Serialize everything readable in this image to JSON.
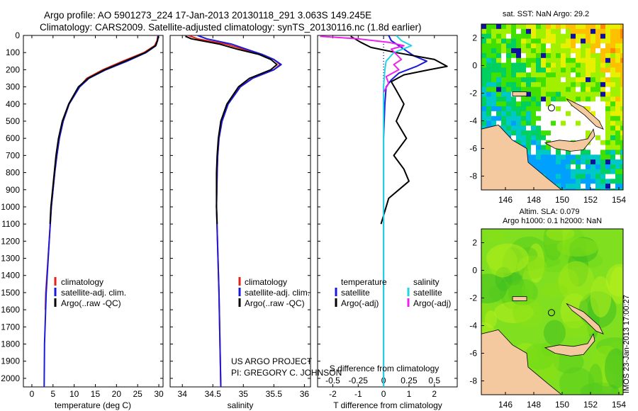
{
  "header": {
    "line1": "Argo profile: AO 5901273_224 17-Jan-2013 20130118_291 3.063S 149.245E",
    "line2": "Climatology: CARS2009. Satellite-adjusted climatology: synTS_20130116.nc (1.8d earlier)"
  },
  "footer": {
    "project": "US ARGO PROJECT",
    "pi": "PI: GREGORY C. JOHNSON",
    "watermark": "IMOS 23-Jan-2013 17:00:27"
  },
  "legend_profile": {
    "items": [
      "climatology",
      "satellite-adj. clim.",
      "Argo(..raw -QC)"
    ]
  },
  "legend_diff": {
    "col1_title": "temperature",
    "col2_title": "salinity",
    "col1_items": [
      "satellite",
      "Argo(-adj)"
    ],
    "col2_items": [
      "satellite",
      "Argo(-adj)"
    ]
  },
  "colors": {
    "climatology": "#e8201a",
    "satellite": "#1a1ad8",
    "argo": "#000000",
    "sal_satellite": "#22d4e6",
    "sal_argo": "#ee22ee",
    "land": "#f5c9a0"
  },
  "chart_data": [
    {
      "name": "temperature-profile",
      "type": "line",
      "xlabel": "temperature (deg C)",
      "ylabel": "",
      "xlim": [
        -2,
        31
      ],
      "ylim": [
        2050,
        0
      ],
      "xticks": [
        0,
        5,
        10,
        15,
        20,
        25,
        30
      ],
      "yticks": [
        0,
        100,
        200,
        300,
        400,
        500,
        600,
        700,
        800,
        900,
        1000,
        1100,
        1200,
        1300,
        1400,
        1500,
        1600,
        1700,
        1800,
        1900,
        2000
      ],
      "series": [
        {
          "name": "climatology",
          "color": "#e8201a",
          "depth": [
            0,
            30,
            60,
            100,
            150,
            200,
            250,
            300,
            400,
            500,
            600,
            700,
            800,
            900,
            1000,
            1200,
            1500,
            1600
          ],
          "values": [
            29.8,
            29.6,
            29.0,
            26.5,
            21.5,
            16.8,
            13.0,
            11.2,
            8.8,
            7.4,
            6.5,
            5.9,
            5.4,
            5.0,
            4.6,
            4.1,
            3.3,
            3.2
          ]
        },
        {
          "name": "satellite-adj. clim.",
          "color": "#1a1ad8",
          "depth": [
            0,
            30,
            60,
            100,
            150,
            200,
            250,
            300,
            400,
            500,
            600,
            700,
            800,
            900,
            1000,
            1200,
            1500,
            1800,
            2050
          ],
          "values": [
            29.9,
            29.7,
            29.3,
            27.0,
            22.5,
            17.5,
            13.5,
            11.3,
            8.8,
            7.4,
            6.5,
            5.9,
            5.4,
            5.0,
            4.6,
            4.1,
            3.4,
            3.0,
            2.9
          ]
        },
        {
          "name": "Argo(..raw -QC)",
          "color": "#000000",
          "depth": [
            5,
            30,
            60,
            100,
            150,
            200,
            250,
            300,
            400,
            500,
            600,
            700,
            800,
            900,
            1000,
            1100
          ],
          "values": [
            29.9,
            29.7,
            29.2,
            26.8,
            22.0,
            17.2,
            13.3,
            11.0,
            8.7,
            7.2,
            6.3,
            5.7,
            5.3,
            4.9,
            4.5,
            4.3
          ]
        }
      ]
    },
    {
      "name": "salinity-profile",
      "type": "line",
      "xlabel": "salinity",
      "ylabel": "",
      "xlim": [
        33.8,
        36.1
      ],
      "ylim": [
        2050,
        0
      ],
      "xticks": [
        34,
        34.5,
        35,
        35.5,
        36
      ],
      "series": [
        {
          "name": "climatology",
          "color": "#e8201a",
          "depth": [
            0,
            20,
            50,
            80,
            110,
            140,
            170,
            200,
            250,
            300,
            400,
            500,
            600,
            700,
            800,
            1000,
            1500,
            2050
          ],
          "values": [
            34.1,
            34.25,
            34.7,
            35.0,
            35.3,
            35.5,
            35.6,
            35.5,
            35.15,
            34.95,
            34.75,
            34.65,
            34.6,
            34.58,
            34.57,
            34.56,
            34.6,
            34.63
          ]
        },
        {
          "name": "satellite-adj. clim.",
          "color": "#1a1ad8",
          "depth": [
            0,
            20,
            50,
            80,
            110,
            140,
            170,
            200,
            250,
            300,
            400,
            500,
            600,
            700,
            800,
            1000,
            1500,
            2050
          ],
          "values": [
            34.25,
            34.4,
            34.8,
            35.05,
            35.3,
            35.5,
            35.62,
            35.5,
            35.15,
            34.95,
            34.75,
            34.65,
            34.6,
            34.58,
            34.57,
            34.56,
            34.6,
            34.63
          ]
        },
        {
          "name": "Argo(..raw -QC)",
          "color": "#000000",
          "depth": [
            5,
            20,
            50,
            80,
            110,
            140,
            170,
            200,
            250,
            300,
            400,
            500,
            600,
            700,
            800,
            1000,
            1100
          ],
          "values": [
            34.05,
            34.15,
            34.6,
            34.9,
            35.25,
            35.45,
            35.55,
            35.45,
            35.1,
            34.92,
            34.73,
            34.63,
            34.59,
            34.57,
            34.56,
            34.56,
            34.57
          ]
        }
      ]
    },
    {
      "name": "difference-profile",
      "type": "line",
      "xlabel": "T difference from climatology",
      "xlabel_top": "S difference from climatology",
      "xlim": [
        -2.6,
        2.9
      ],
      "ylim": [
        2050,
        0
      ],
      "xticks": [
        -2,
        -1,
        0,
        1,
        2
      ],
      "xticks_s": [
        "-0.5",
        "-0.25",
        "0",
        "0.25",
        "0.5"
      ],
      "xticks_s_values": [
        -2,
        -1,
        0,
        1,
        2
      ],
      "series": [
        {
          "name": "T satellite",
          "color": "#1a1ad8",
          "depth": [
            0,
            30,
            60,
            90,
            120,
            150,
            180,
            220,
            260,
            300,
            400,
            600,
            800,
            1000,
            1500,
            2050
          ],
          "values": [
            0.2,
            0.3,
            0.6,
            0.9,
            1.2,
            1.7,
            1.3,
            0.6,
            0.3,
            0.1,
            0.05,
            0.0,
            0.0,
            0.0,
            0.0,
            0.0
          ]
        },
        {
          "name": "T Argo(-adj)",
          "color": "#000000",
          "depth": [
            5,
            40,
            70,
            100,
            140,
            180,
            200,
            230,
            270,
            320,
            400,
            500,
            600,
            700,
            780,
            850,
            950,
            1100
          ],
          "values": [
            -1.3,
            -0.9,
            -0.5,
            0.5,
            2.0,
            2.5,
            1.8,
            0.8,
            0.3,
            0.5,
            0.8,
            0.5,
            0.9,
            0.4,
            0.8,
            1.0,
            0.2,
            -0.1
          ]
        },
        {
          "name": "S satellite",
          "color": "#22d4e6",
          "depth": [
            0,
            30,
            60,
            100,
            150,
            200,
            300,
            500,
            1000,
            2050
          ],
          "values": [
            0.5,
            0.7,
            1.1,
            0.4,
            0.1,
            0.05,
            0.0,
            0.0,
            0.0,
            0.0
          ]
        },
        {
          "name": "S Argo(-adj)",
          "color": "#ee22ee",
          "depth": [
            5,
            20,
            40,
            60,
            80,
            110,
            140,
            170,
            200,
            240,
            280,
            330
          ],
          "values": [
            -2.5,
            -1.0,
            0.2,
            0.8,
            0.3,
            0.5,
            0.7,
            0.4,
            0.6,
            0.1,
            0.2,
            0.0
          ]
        }
      ]
    },
    {
      "name": "sst-map",
      "type": "heatmap",
      "title": "sat. SST: NaN Argo: 29.2",
      "xticks": [
        146,
        148,
        150,
        152,
        154
      ],
      "yticks": [
        2,
        0,
        -2,
        -4,
        -6,
        -8
      ],
      "xlim": [
        144.3,
        154.3
      ],
      "ylim": [
        -9,
        3
      ],
      "float_position": {
        "lon": 149.245,
        "lat": -3.063
      }
    },
    {
      "name": "sla-map",
      "type": "heatmap",
      "title_line1": "Altim. SLA: 0.079",
      "title_line2": "Argo h1000: 0.1 h2000: NaN",
      "xticks": [
        146,
        148,
        150,
        152,
        154
      ],
      "yticks": [
        2,
        0,
        -2,
        -4,
        -6,
        -8
      ],
      "xlim": [
        144.3,
        154.3
      ],
      "ylim": [
        -9,
        3
      ],
      "float_position": {
        "lon": 149.245,
        "lat": -3.063
      }
    }
  ]
}
